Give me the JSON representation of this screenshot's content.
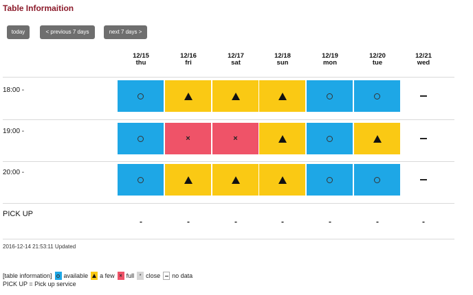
{
  "title": "Table Informaition",
  "buttons": {
    "today": "today",
    "prev": "< previous 7 days",
    "next": "next 7 days >"
  },
  "days": [
    {
      "date": "12/15",
      "dow": "thu"
    },
    {
      "date": "12/16",
      "dow": "fri"
    },
    {
      "date": "12/17",
      "dow": "sat"
    },
    {
      "date": "12/18",
      "dow": "sun"
    },
    {
      "date": "12/19",
      "dow": "mon"
    },
    {
      "date": "12/20",
      "dow": "tue"
    },
    {
      "date": "12/21",
      "dow": "wed"
    }
  ],
  "rows": [
    {
      "label": "18:00 -",
      "status": [
        "available",
        "a few",
        "a few",
        "a few",
        "available",
        "available",
        "no data"
      ]
    },
    {
      "label": "19:00 -",
      "status": [
        "available",
        "full",
        "full",
        "a few",
        "available",
        "a few",
        "no data"
      ]
    },
    {
      "label": "20:00 -",
      "status": [
        "available",
        "a few",
        "a few",
        "a few",
        "available",
        "available",
        "no data"
      ]
    }
  ],
  "pickup": {
    "label": "PICK UP",
    "values": [
      "-",
      "-",
      "-",
      "-",
      "-",
      "-",
      "-"
    ]
  },
  "updated": "2016-12-14 21:53:11 Updated",
  "legend": {
    "prefix": "[table information]",
    "available": "available",
    "few": "a few",
    "full": "full",
    "close": "close",
    "nodata": "no data",
    "close_symbol": "*"
  },
  "note": "PICK UP = Pick up service",
  "colors": {
    "available": "#1ea7e6",
    "few": "#fac914",
    "full": "#ef5368",
    "title": "#8b1a2a"
  }
}
